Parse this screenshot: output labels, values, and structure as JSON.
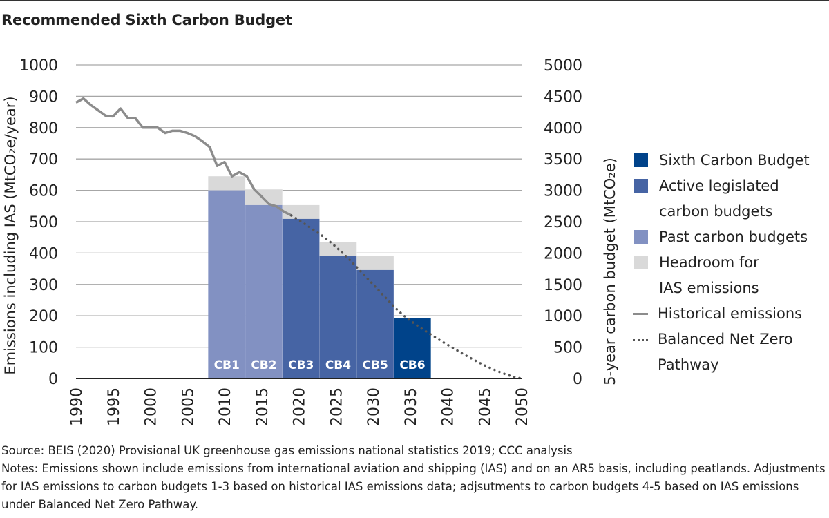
{
  "title": "Recommended Sixth Carbon Budget",
  "chart_data": {
    "type": "bar",
    "title": "Recommended Sixth Carbon Budget",
    "xlabel": "",
    "ylabel": "Emissions including IAS (MtCO₂e/year)",
    "ylabel_right": "5-year carbon budget (MtCO₂e)",
    "xlim": [
      1990,
      2050
    ],
    "ylim": [
      0,
      1000
    ],
    "ylim_right": [
      0,
      5000
    ],
    "grid": true,
    "legend_position": "right",
    "x_ticks": [
      "1990",
      "1995",
      "2000",
      "2005",
      "2010",
      "2015",
      "2020",
      "2025",
      "2030",
      "2035",
      "2040",
      "2045",
      "2050"
    ],
    "y_ticks": [
      "0",
      "100",
      "200",
      "300",
      "400",
      "500",
      "600",
      "700",
      "800",
      "900",
      "1000"
    ],
    "y_ticks_right": [
      "0",
      "500",
      "1000",
      "1500",
      "2000",
      "2500",
      "3000",
      "3500",
      "4000",
      "4500",
      "5000"
    ],
    "budgets": [
      {
        "label": "CB1",
        "start": 2008,
        "end": 2012,
        "budget_annual": 600,
        "headroom_annual": 45,
        "budget_total": 3000,
        "category": "past"
      },
      {
        "label": "CB2",
        "start": 2013,
        "end": 2017,
        "budget_annual": 553,
        "headroom_annual": 50,
        "budget_total": 2765,
        "category": "past"
      },
      {
        "label": "CB3",
        "start": 2018,
        "end": 2022,
        "budget_annual": 509,
        "headroom_annual": 44,
        "budget_total": 2544,
        "category": "active"
      },
      {
        "label": "CB4",
        "start": 2023,
        "end": 2027,
        "budget_annual": 390,
        "headroom_annual": 44,
        "budget_total": 1950,
        "category": "active"
      },
      {
        "label": "CB5",
        "start": 2028,
        "end": 2032,
        "budget_annual": 346,
        "headroom_annual": 44,
        "budget_total": 1725,
        "category": "active"
      },
      {
        "label": "CB6",
        "start": 2033,
        "end": 2037,
        "budget_annual": 193,
        "headroom_annual": 0,
        "budget_total": 965,
        "category": "sixth"
      }
    ],
    "series": [
      {
        "name": "Historical emissions",
        "style": "solid",
        "x": [
          1990,
          1991,
          1992,
          1993,
          1994,
          1995,
          1996,
          1997,
          1998,
          1999,
          2000,
          2001,
          2002,
          2003,
          2004,
          2005,
          2006,
          2007,
          2008,
          2009,
          2010,
          2011,
          2012,
          2013,
          2014,
          2015,
          2016,
          2017,
          2018,
          2019
        ],
        "values": [
          880,
          893,
          872,
          855,
          838,
          836,
          861,
          830,
          830,
          800,
          800,
          800,
          783,
          790,
          790,
          783,
          773,
          757,
          738,
          678,
          690,
          645,
          658,
          645,
          603,
          580,
          556,
          549,
          532,
          520
        ]
      },
      {
        "name": "Balanced Net Zero Pathway",
        "style": "dotted",
        "x": [
          2019,
          2020,
          2021,
          2022,
          2023,
          2024,
          2025,
          2026,
          2027,
          2028,
          2029,
          2030,
          2031,
          2032,
          2033,
          2034,
          2035,
          2036,
          2037,
          2038,
          2039,
          2040,
          2041,
          2042,
          2043,
          2044,
          2045,
          2046,
          2047,
          2048,
          2049,
          2050
        ],
        "values": [
          520,
          505,
          490,
          474,
          458,
          440,
          420,
          398,
          375,
          350,
          325,
          300,
          275,
          250,
          225,
          203,
          185,
          168,
          152,
          137,
          122,
          108,
          94,
          80,
          67,
          54,
          42,
          31,
          21,
          12,
          5,
          0
        ]
      }
    ],
    "legend": [
      {
        "label": "Sixth Carbon Budget",
        "type": "swatch",
        "color": "#00438A"
      },
      {
        "label": "Active legislated\ncarbon budgets",
        "type": "swatch",
        "color": "#4664A4"
      },
      {
        "label": "Past carbon budgets",
        "type": "swatch",
        "color": "#8291C2"
      },
      {
        "label": "Headroom for\nIAS emissions",
        "type": "swatch",
        "color": "#D9D9D9"
      },
      {
        "label": "Historical emissions",
        "type": "line",
        "color": "#8C8C8C"
      },
      {
        "label": "Balanced Net Zero\nPathway",
        "type": "dots",
        "color": "#555555"
      }
    ],
    "colors": {
      "sixth": "#00438A",
      "active": "#4664A4",
      "past": "#8291C2",
      "headroom": "#D9D9D9",
      "historical": "#8C8C8C",
      "pathway": "#555555",
      "grid": "#A6A6A6",
      "axis": "#222222"
    }
  },
  "footer": {
    "source": "Source: BEIS (2020) Provisional UK greenhouse gas emissions national statistics 2019; CCC analysis",
    "notes": "Notes: Emissions shown include emissions from international aviation and shipping (IAS) and on an AR5 basis, including peatlands. Adjustments for IAS emissions to carbon budgets 1-3 based on historical IAS emissions data; adjsutments to carbon budgets 4-5 based on IAS emissions under Balanced Net Zero Pathway."
  }
}
